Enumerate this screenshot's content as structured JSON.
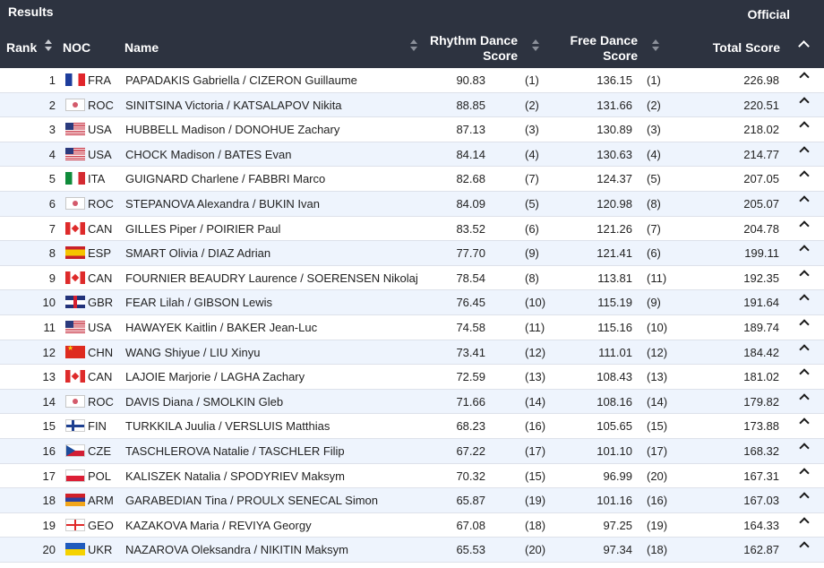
{
  "header": {
    "title": "Results",
    "status": "Official",
    "columns": {
      "rank": "Rank",
      "noc": "NOC",
      "name": "Name",
      "rd_line1": "Rhythm Dance",
      "rd_line2": "Score",
      "fd_line1": "Free Dance",
      "fd_line2": "Score",
      "total": "Total Score"
    }
  },
  "rows": [
    {
      "rank": "1",
      "noc": "FRA",
      "flag": "fra",
      "name": "PAPADAKIS Gabriella / CIZERON Guillaume",
      "rd": "90.83",
      "rd_rank": "(1)",
      "fd": "136.15",
      "fd_rank": "(1)",
      "total": "226.98"
    },
    {
      "rank": "2",
      "noc": "ROC",
      "flag": "roc",
      "name": "SINITSINA Victoria / KATSALAPOV Nikita",
      "rd": "88.85",
      "rd_rank": "(2)",
      "fd": "131.66",
      "fd_rank": "(2)",
      "total": "220.51"
    },
    {
      "rank": "3",
      "noc": "USA",
      "flag": "usa",
      "name": "HUBBELL Madison / DONOHUE Zachary",
      "rd": "87.13",
      "rd_rank": "(3)",
      "fd": "130.89",
      "fd_rank": "(3)",
      "total": "218.02"
    },
    {
      "rank": "4",
      "noc": "USA",
      "flag": "usa",
      "name": "CHOCK Madison / BATES Evan",
      "rd": "84.14",
      "rd_rank": "(4)",
      "fd": "130.63",
      "fd_rank": "(4)",
      "total": "214.77"
    },
    {
      "rank": "5",
      "noc": "ITA",
      "flag": "ita",
      "name": "GUIGNARD Charlene / FABBRI Marco",
      "rd": "82.68",
      "rd_rank": "(7)",
      "fd": "124.37",
      "fd_rank": "(5)",
      "total": "207.05"
    },
    {
      "rank": "6",
      "noc": "ROC",
      "flag": "roc",
      "name": "STEPANOVA Alexandra / BUKIN Ivan",
      "rd": "84.09",
      "rd_rank": "(5)",
      "fd": "120.98",
      "fd_rank": "(8)",
      "total": "205.07"
    },
    {
      "rank": "7",
      "noc": "CAN",
      "flag": "can",
      "name": "GILLES Piper / POIRIER Paul",
      "rd": "83.52",
      "rd_rank": "(6)",
      "fd": "121.26",
      "fd_rank": "(7)",
      "total": "204.78"
    },
    {
      "rank": "8",
      "noc": "ESP",
      "flag": "esp",
      "name": "SMART Olivia / DIAZ Adrian",
      "rd": "77.70",
      "rd_rank": "(9)",
      "fd": "121.41",
      "fd_rank": "(6)",
      "total": "199.11"
    },
    {
      "rank": "9",
      "noc": "CAN",
      "flag": "can",
      "name": "FOURNIER BEAUDRY Laurence / SOERENSEN Nikolaj",
      "rd": "78.54",
      "rd_rank": "(8)",
      "fd": "113.81",
      "fd_rank": "(11)",
      "total": "192.35"
    },
    {
      "rank": "10",
      "noc": "GBR",
      "flag": "gbr",
      "name": "FEAR Lilah / GIBSON Lewis",
      "rd": "76.45",
      "rd_rank": "(10)",
      "fd": "115.19",
      "fd_rank": "(9)",
      "total": "191.64"
    },
    {
      "rank": "11",
      "noc": "USA",
      "flag": "usa",
      "name": "HAWAYEK Kaitlin / BAKER Jean-Luc",
      "rd": "74.58",
      "rd_rank": "(11)",
      "fd": "115.16",
      "fd_rank": "(10)",
      "total": "189.74"
    },
    {
      "rank": "12",
      "noc": "CHN",
      "flag": "chn",
      "name": "WANG Shiyue / LIU Xinyu",
      "rd": "73.41",
      "rd_rank": "(12)",
      "fd": "111.01",
      "fd_rank": "(12)",
      "total": "184.42"
    },
    {
      "rank": "13",
      "noc": "CAN",
      "flag": "can",
      "name": "LAJOIE Marjorie / LAGHA Zachary",
      "rd": "72.59",
      "rd_rank": "(13)",
      "fd": "108.43",
      "fd_rank": "(13)",
      "total": "181.02"
    },
    {
      "rank": "14",
      "noc": "ROC",
      "flag": "roc",
      "name": "DAVIS Diana / SMOLKIN Gleb",
      "rd": "71.66",
      "rd_rank": "(14)",
      "fd": "108.16",
      "fd_rank": "(14)",
      "total": "179.82"
    },
    {
      "rank": "15",
      "noc": "FIN",
      "flag": "fin",
      "name": "TURKKILA Juulia / VERSLUIS Matthias",
      "rd": "68.23",
      "rd_rank": "(16)",
      "fd": "105.65",
      "fd_rank": "(15)",
      "total": "173.88"
    },
    {
      "rank": "16",
      "noc": "CZE",
      "flag": "cze",
      "name": "TASCHLEROVA Natalie / TASCHLER Filip",
      "rd": "67.22",
      "rd_rank": "(17)",
      "fd": "101.10",
      "fd_rank": "(17)",
      "total": "168.32"
    },
    {
      "rank": "17",
      "noc": "POL",
      "flag": "pol",
      "name": "KALISZEK Natalia / SPODYRIEV Maksym",
      "rd": "70.32",
      "rd_rank": "(15)",
      "fd": "96.99",
      "fd_rank": "(20)",
      "total": "167.31"
    },
    {
      "rank": "18",
      "noc": "ARM",
      "flag": "arm",
      "name": "GARABEDIAN Tina / PROULX SENECAL Simon",
      "rd": "65.87",
      "rd_rank": "(19)",
      "fd": "101.16",
      "fd_rank": "(16)",
      "total": "167.03"
    },
    {
      "rank": "19",
      "noc": "GEO",
      "flag": "geo",
      "name": "KAZAKOVA Maria / REVIYA Georgy",
      "rd": "67.08",
      "rd_rank": "(18)",
      "fd": "97.25",
      "fd_rank": "(19)",
      "total": "164.33"
    },
    {
      "rank": "20",
      "noc": "UKR",
      "flag": "ukr",
      "name": "NAZAROVA Oleksandra / NIKITIN Maksym",
      "rd": "65.53",
      "rd_rank": "(20)",
      "fd": "97.34",
      "fd_rank": "(18)",
      "total": "162.87"
    }
  ]
}
